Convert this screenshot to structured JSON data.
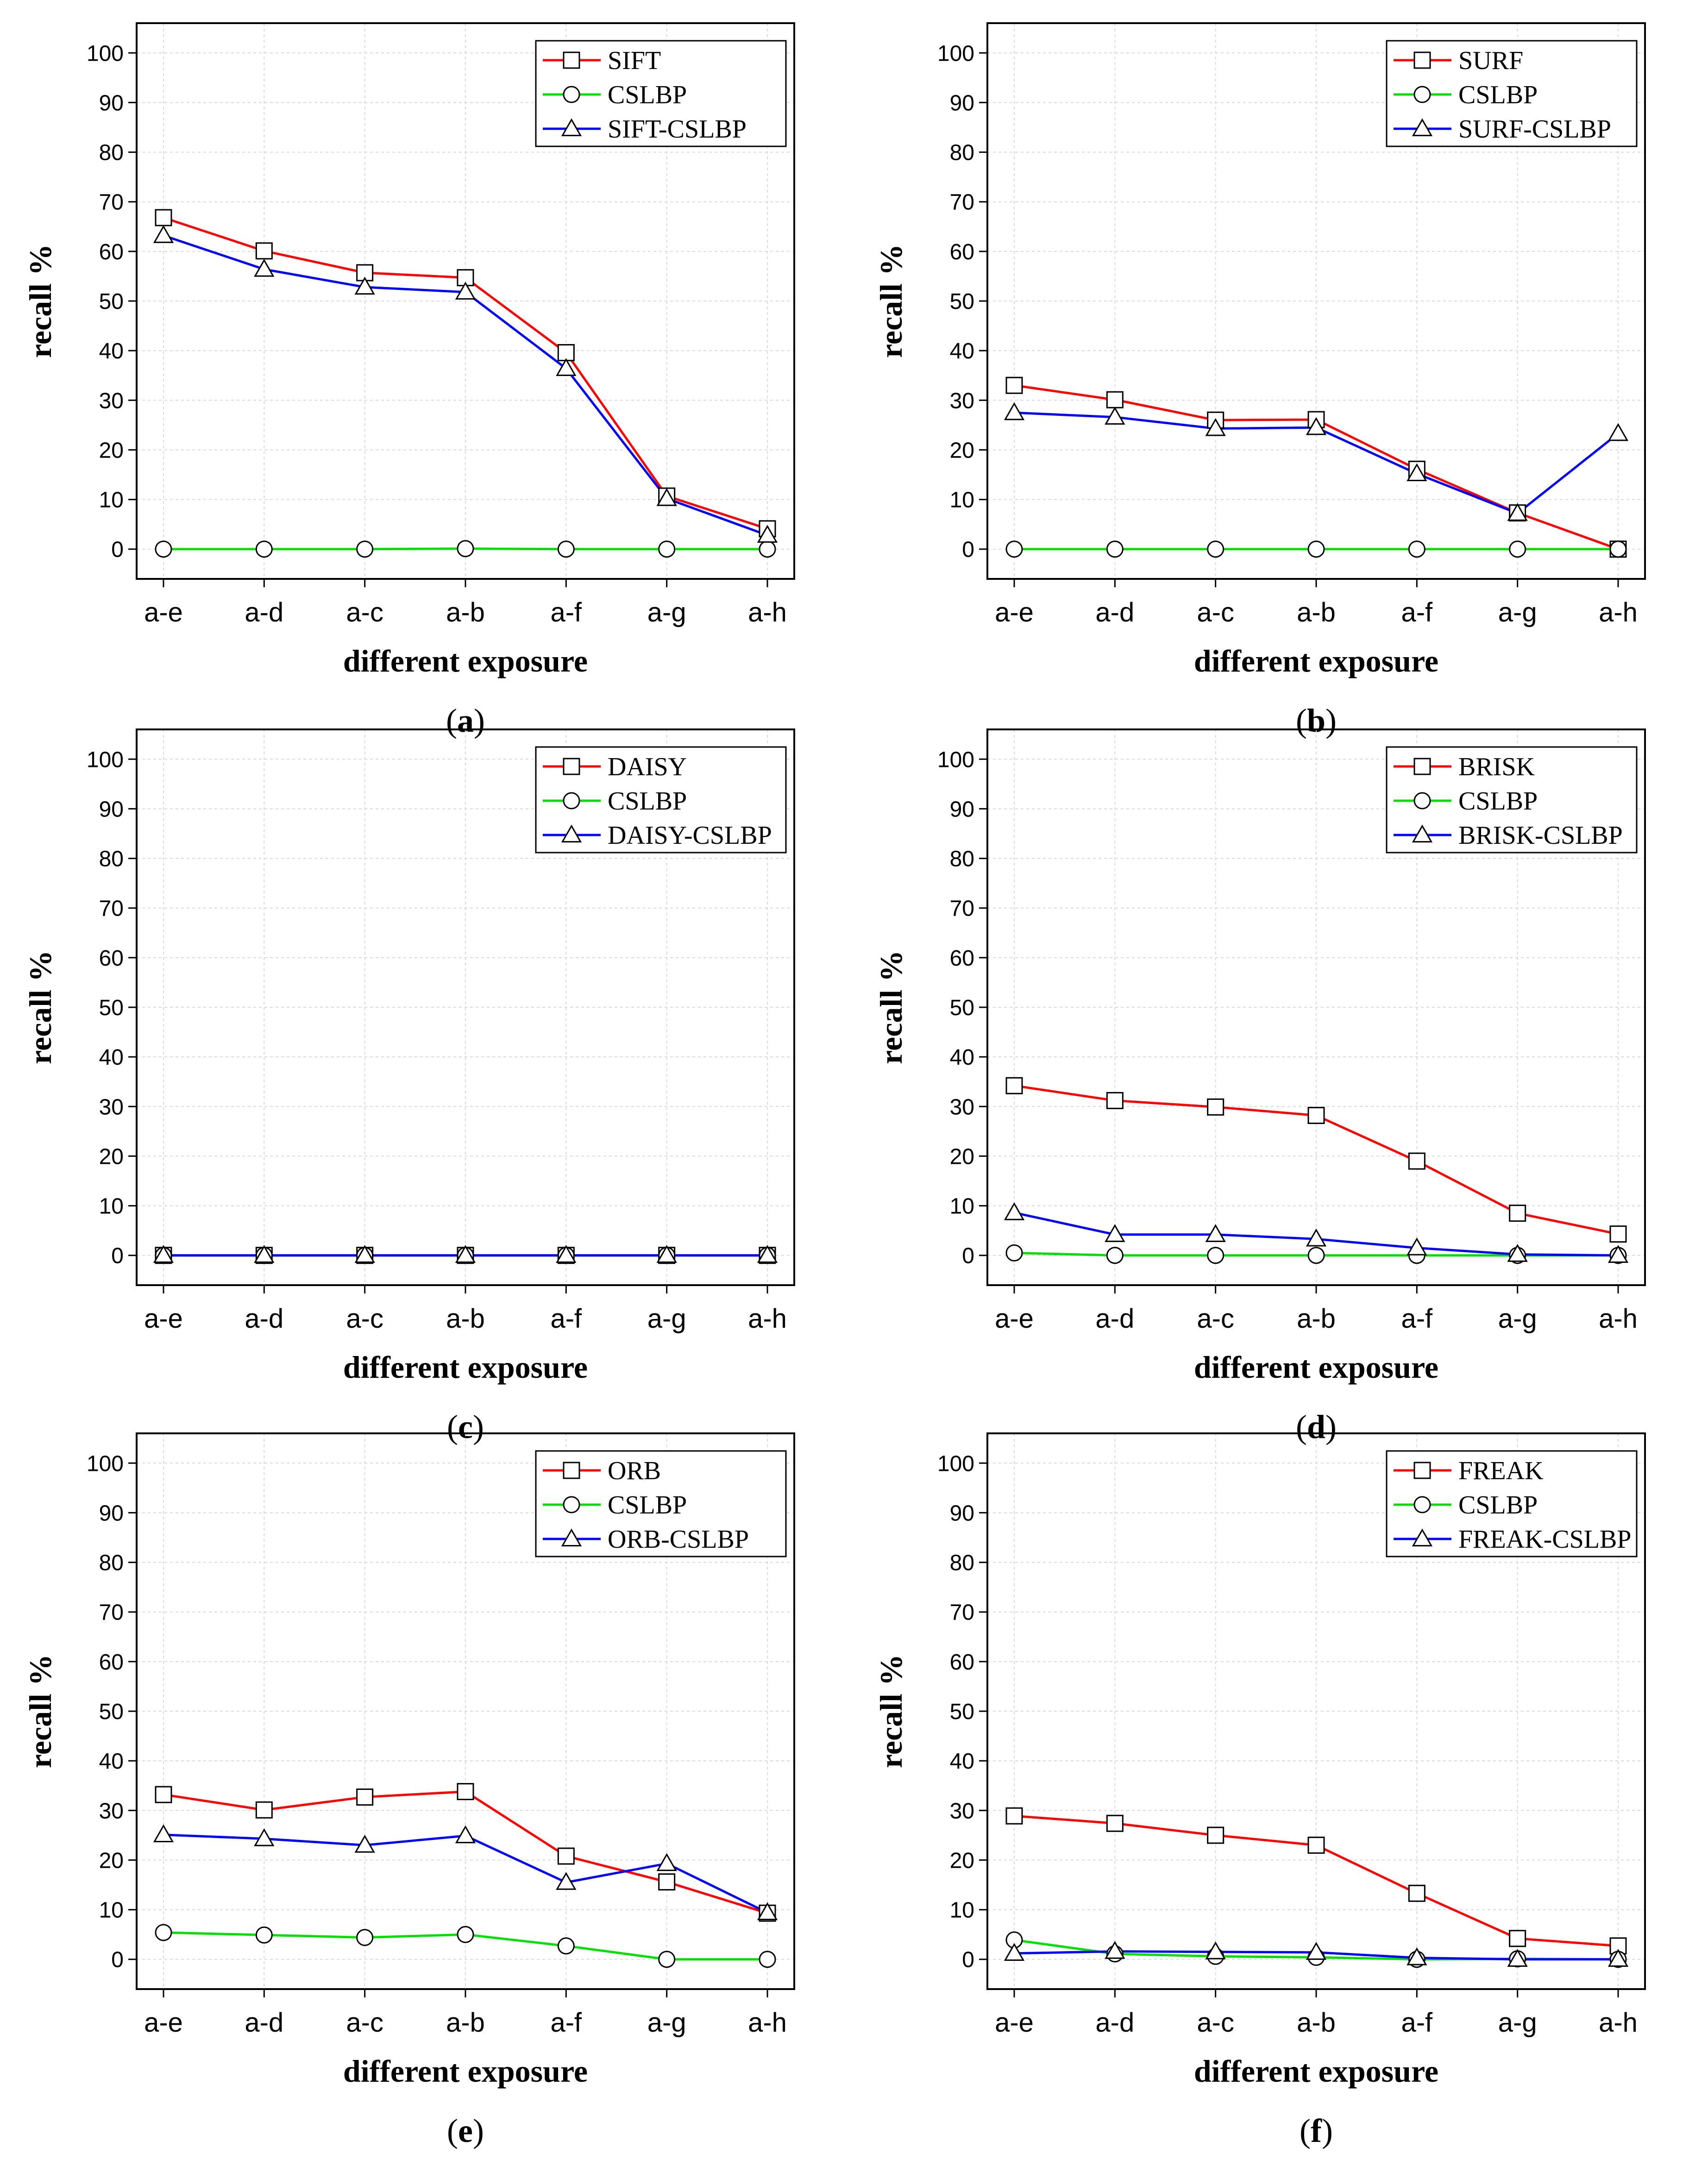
{
  "chart_data": [
    {
      "type": "line",
      "label": "a",
      "xlabel": "different exposure",
      "ylabel": "recall %",
      "categories": [
        "a-e",
        "a-d",
        "a-c",
        "a-b",
        "a-f",
        "a-g",
        "a-h"
      ],
      "ylim": [
        -6,
        106
      ],
      "yticks": [
        0,
        10,
        20,
        30,
        40,
        50,
        60,
        70,
        80,
        90,
        100
      ],
      "grid": true,
      "legend_position": "top-right",
      "series": [
        {
          "name": "SIFT",
          "color": "#ff0000",
          "marker": "square",
          "values": [
            66.8,
            60.1,
            55.7,
            54.7,
            39.6,
            10.7,
            4.1
          ]
        },
        {
          "name": "CSLBP",
          "color": "#00e000",
          "marker": "circle",
          "values": [
            0,
            0,
            0,
            0.1,
            0,
            0,
            0
          ]
        },
        {
          "name": "SIFT-CSLBP",
          "color": "#0000ff",
          "marker": "triangle",
          "values": [
            63.2,
            56.4,
            52.8,
            51.8,
            36.4,
            10.2,
            2.8
          ]
        }
      ]
    },
    {
      "type": "line",
      "label": "b",
      "xlabel": "different exposure",
      "ylabel": "recall %",
      "categories": [
        "a-e",
        "a-d",
        "a-c",
        "a-b",
        "a-f",
        "a-g",
        "a-h"
      ],
      "ylim": [
        -6,
        106
      ],
      "yticks": [
        0,
        10,
        20,
        30,
        40,
        50,
        60,
        70,
        80,
        90,
        100
      ],
      "grid": true,
      "legend_position": "top-right",
      "series": [
        {
          "name": "SURF",
          "color": "#ff0000",
          "marker": "square",
          "values": [
            33,
            30.1,
            26,
            26.1,
            16.1,
            7.3,
            0
          ]
        },
        {
          "name": "CSLBP",
          "color": "#00e000",
          "marker": "circle",
          "values": [
            0,
            0,
            0,
            0,
            0,
            0,
            0
          ]
        },
        {
          "name": "SURF-CSLBP",
          "color": "#0000ff",
          "marker": "triangle",
          "values": [
            27.5,
            26.6,
            24.3,
            24.5,
            15.2,
            7.2,
            23.3
          ]
        }
      ]
    },
    {
      "type": "line",
      "label": "c",
      "xlabel": "different exposure",
      "ylabel": "recall %",
      "categories": [
        "a-e",
        "a-d",
        "a-c",
        "a-b",
        "a-f",
        "a-g",
        "a-h"
      ],
      "ylim": [
        -6,
        106
      ],
      "yticks": [
        0,
        10,
        20,
        30,
        40,
        50,
        60,
        70,
        80,
        90,
        100
      ],
      "grid": true,
      "legend_position": "top-right",
      "series": [
        {
          "name": "DAISY",
          "color": "#ff0000",
          "marker": "square",
          "values": [
            0,
            0,
            0,
            0,
            0,
            0,
            0
          ]
        },
        {
          "name": "CSLBP",
          "color": "#00e000",
          "marker": "circle",
          "values": [
            0,
            0,
            0,
            0,
            0,
            0,
            0
          ]
        },
        {
          "name": "DAISY-CSLBP",
          "color": "#0000ff",
          "marker": "triangle",
          "values": [
            0,
            0,
            0,
            0,
            0,
            0,
            0
          ]
        }
      ]
    },
    {
      "type": "line",
      "label": "d",
      "xlabel": "different exposure",
      "ylabel": "recall %",
      "categories": [
        "a-e",
        "a-d",
        "a-c",
        "a-b",
        "a-f",
        "a-g",
        "a-h"
      ],
      "ylim": [
        -6,
        106
      ],
      "yticks": [
        0,
        10,
        20,
        30,
        40,
        50,
        60,
        70,
        80,
        90,
        100
      ],
      "grid": true,
      "legend_position": "top-right",
      "series": [
        {
          "name": "BRISK",
          "color": "#ff0000",
          "marker": "square",
          "values": [
            34.2,
            31.2,
            29.9,
            28.2,
            19,
            8.5,
            4.3
          ]
        },
        {
          "name": "CSLBP",
          "color": "#00e000",
          "marker": "circle",
          "values": [
            0.5,
            0,
            0,
            0,
            0,
            0,
            0
          ]
        },
        {
          "name": "BRISK-CSLBP",
          "color": "#0000ff",
          "marker": "triangle",
          "values": [
            8.6,
            4.2,
            4.2,
            3.3,
            1.5,
            0.2,
            0
          ]
        }
      ]
    },
    {
      "type": "line",
      "label": "e",
      "xlabel": "different exposure",
      "ylabel": "recall %",
      "categories": [
        "a-e",
        "a-d",
        "a-c",
        "a-b",
        "a-f",
        "a-g",
        "a-h"
      ],
      "ylim": [
        -6,
        106
      ],
      "yticks": [
        0,
        10,
        20,
        30,
        40,
        50,
        60,
        70,
        80,
        90,
        100
      ],
      "grid": true,
      "legend_position": "top-right",
      "series": [
        {
          "name": "ORB",
          "color": "#ff0000",
          "marker": "square",
          "values": [
            33.2,
            30.1,
            32.7,
            33.8,
            20.8,
            15.6,
            9.3
          ]
        },
        {
          "name": "CSLBP",
          "color": "#00e000",
          "marker": "circle",
          "values": [
            5.4,
            4.9,
            4.4,
            5,
            2.7,
            0,
            0
          ]
        },
        {
          "name": "ORB-CSLBP",
          "color": "#0000ff",
          "marker": "triangle",
          "values": [
            25.1,
            24.3,
            23,
            24.9,
            15.5,
            19.3,
            9.4
          ]
        }
      ]
    },
    {
      "type": "line",
      "label": "f",
      "xlabel": "different exposure",
      "ylabel": "recall %",
      "categories": [
        "a-e",
        "a-d",
        "a-c",
        "a-b",
        "a-f",
        "a-g",
        "a-h"
      ],
      "ylim": [
        -6,
        106
      ],
      "yticks": [
        0,
        10,
        20,
        30,
        40,
        50,
        60,
        70,
        80,
        90,
        100
      ],
      "grid": true,
      "legend_position": "top-right",
      "series": [
        {
          "name": "FREAK",
          "color": "#ff0000",
          "marker": "square",
          "values": [
            28.9,
            27.4,
            25,
            23,
            13.3,
            4.2,
            2.7
          ]
        },
        {
          "name": "CSLBP",
          "color": "#00e000",
          "marker": "circle",
          "values": [
            3.9,
            1.1,
            0.6,
            0.4,
            0,
            0.1,
            0
          ]
        },
        {
          "name": "FREAK-CSLBP",
          "color": "#0000ff",
          "marker": "triangle",
          "values": [
            1.2,
            1.6,
            1.5,
            1.4,
            0.3,
            0,
            0
          ]
        }
      ]
    }
  ]
}
